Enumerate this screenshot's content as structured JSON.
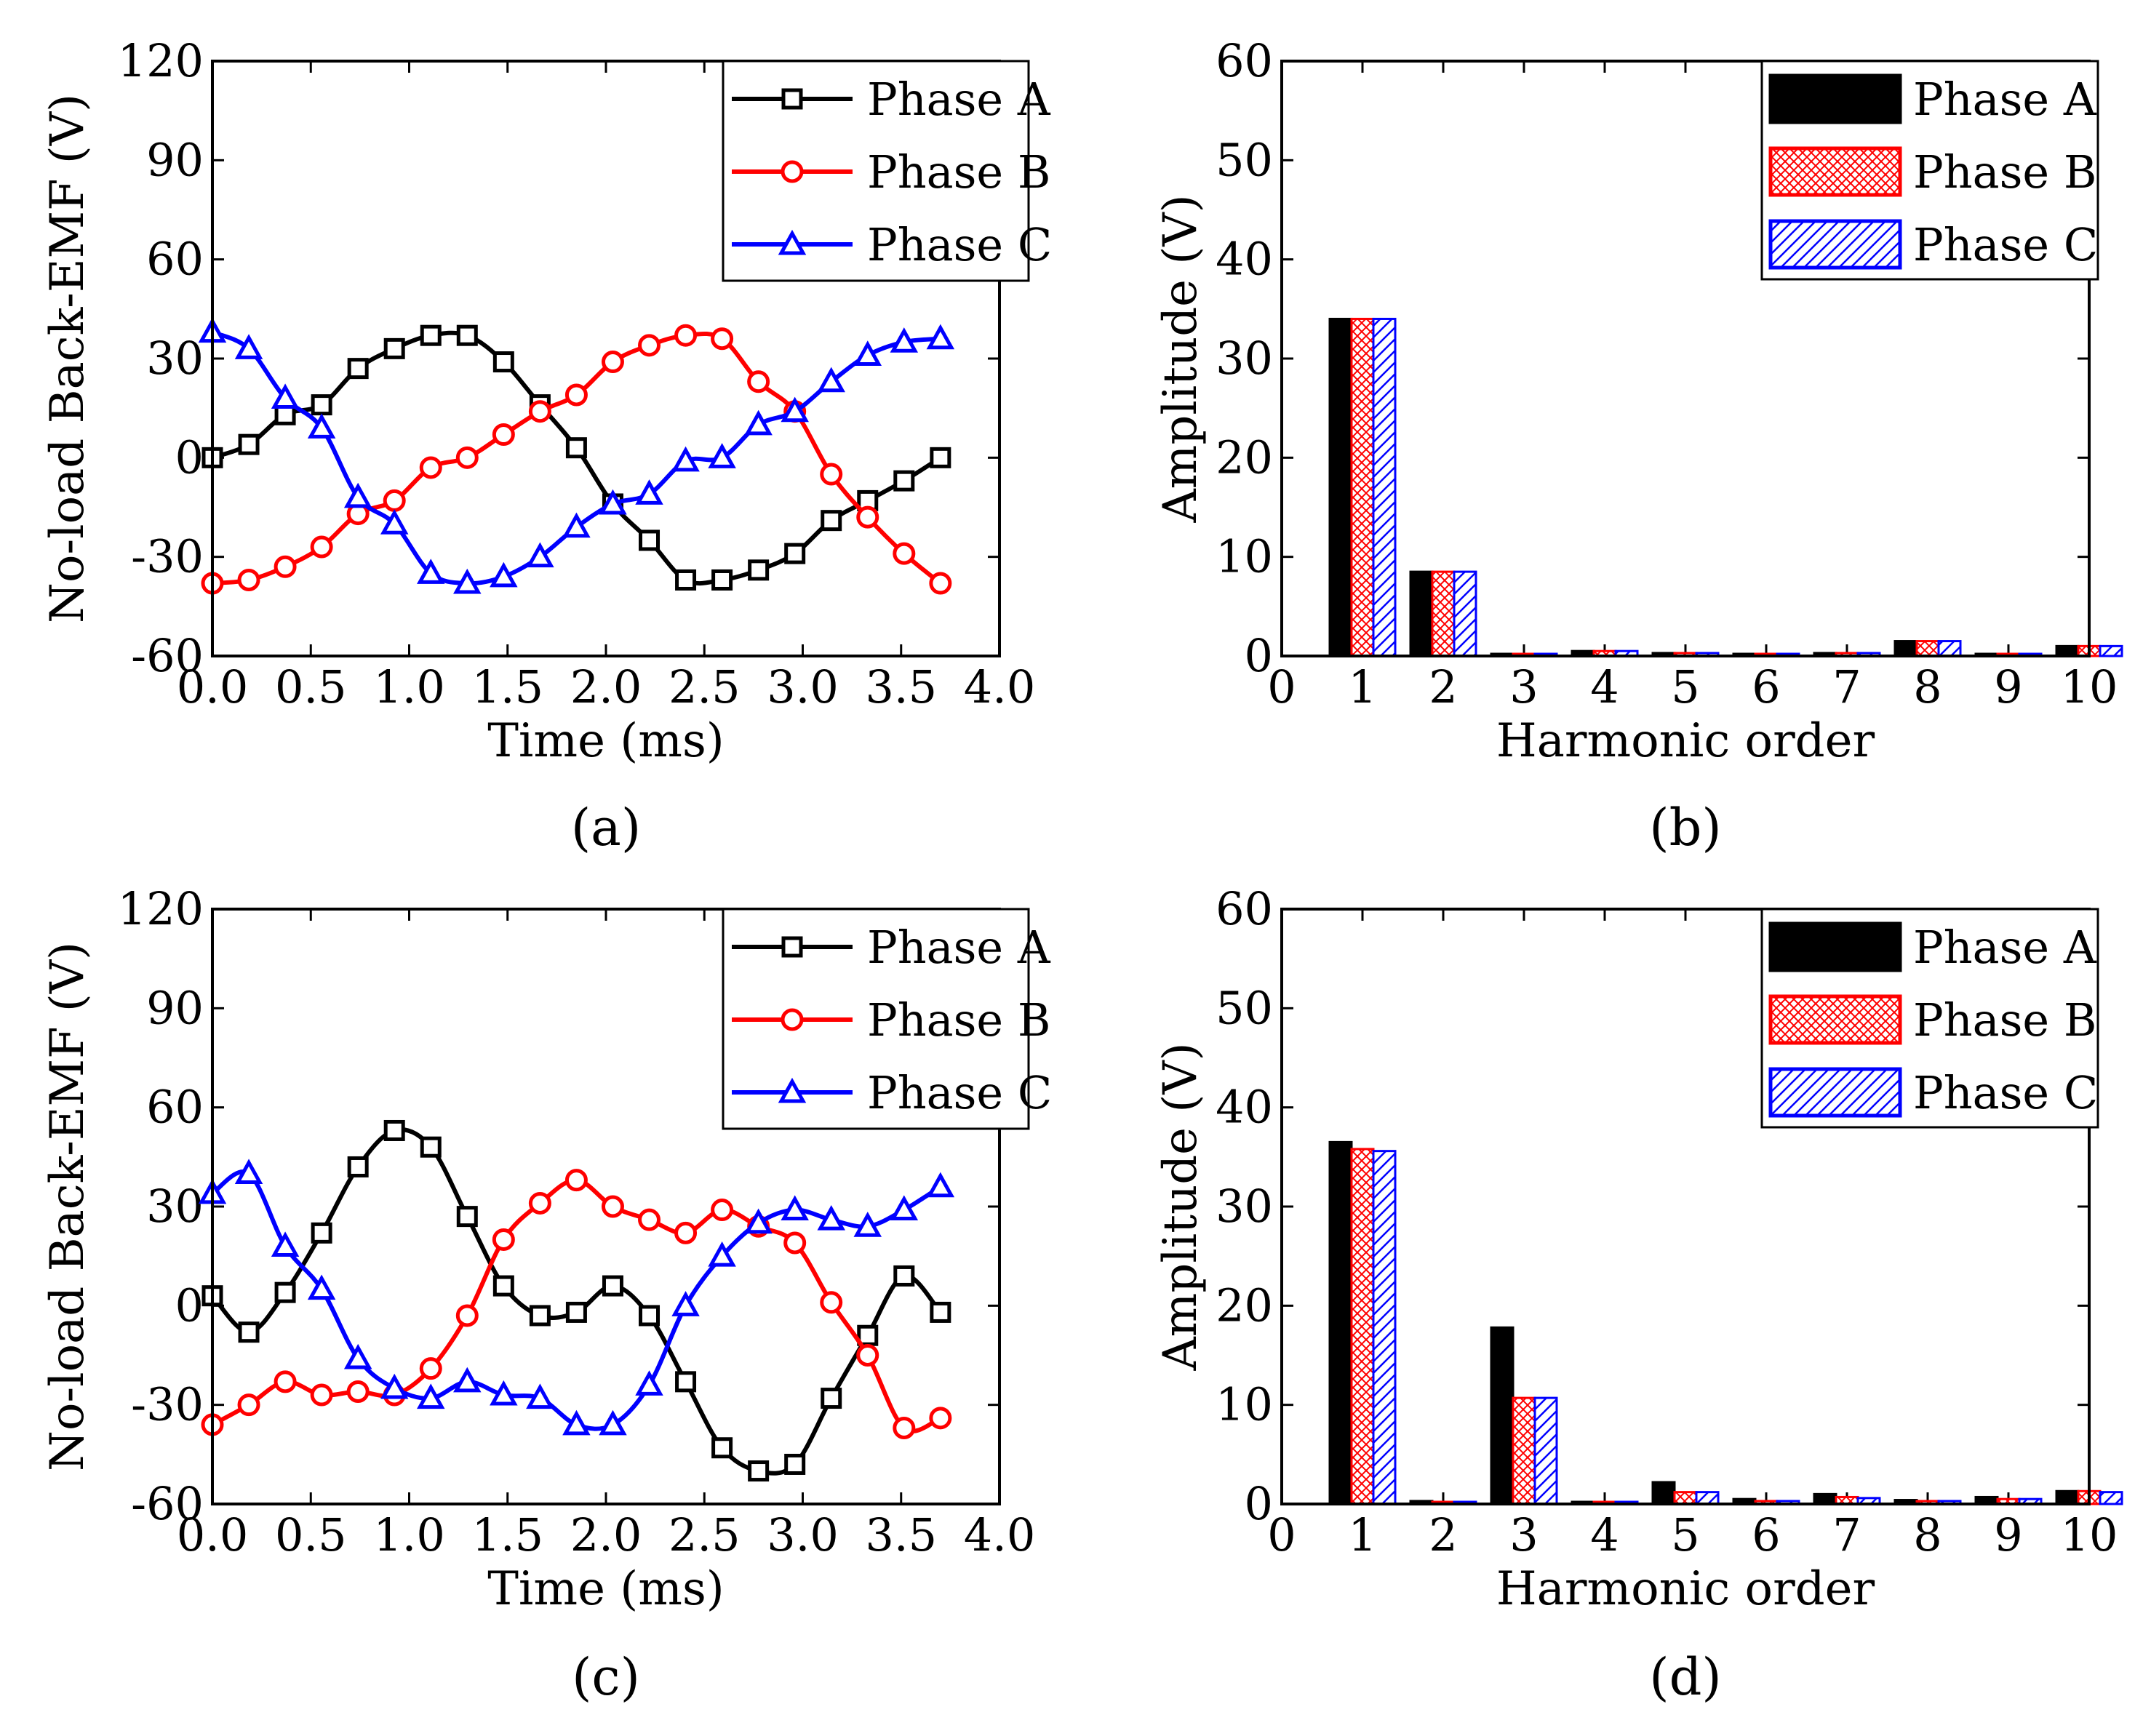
{
  "chart_data": [
    {
      "panel": "(a)",
      "type": "line",
      "xlabel": "Time (ms)",
      "ylabel": "No-load Back-EMF (V)",
      "xlim": [
        0.0,
        4.0
      ],
      "ylim": [
        -60,
        120
      ],
      "xticks": [
        "0.0",
        "0.5",
        "1.0",
        "1.5",
        "2.0",
        "2.5",
        "3.0",
        "3.5",
        "4.0"
      ],
      "yticks": [
        "-60",
        "-30",
        "0",
        "30",
        "60",
        "90",
        "120"
      ],
      "legend_position": "top-right",
      "x": [
        0,
        0.185,
        0.37,
        0.555,
        0.74,
        0.925,
        1.11,
        1.295,
        1.48,
        1.665,
        1.85,
        2.035,
        2.22,
        2.405,
        2.59,
        2.775,
        2.96,
        3.145,
        3.33,
        3.515,
        3.7
      ],
      "series": [
        {
          "name": "Phase A",
          "color": "#000000",
          "marker": "square",
          "values": [
            0,
            4,
            13,
            16,
            27,
            33,
            37,
            37,
            29,
            16,
            3,
            -14,
            -25,
            -37,
            -37,
            -34,
            -29,
            -19,
            -13,
            -7,
            0
          ]
        },
        {
          "name": "Phase B",
          "color": "#ff0000",
          "marker": "circle",
          "values": [
            -38,
            -37,
            -33,
            -27,
            -17,
            -13,
            -3,
            0,
            7,
            14,
            19,
            29,
            34,
            37,
            36,
            23,
            14,
            -5,
            -18,
            -29,
            -38
          ]
        },
        {
          "name": "Phase C",
          "color": "#0000ff",
          "marker": "triangle",
          "values": [
            38,
            33,
            18,
            9,
            -12,
            -20,
            -35,
            -38,
            -36,
            -30,
            -21,
            -14,
            -11,
            -1,
            0,
            10,
            14,
            23,
            31,
            35,
            36
          ]
        }
      ]
    },
    {
      "panel": "(b)",
      "type": "bar",
      "xlabel": "Harmonic order",
      "ylabel": "Amplitude (V)",
      "xlim": [
        0,
        10
      ],
      "ylim": [
        0,
        60
      ],
      "xticks": [
        "0",
        "1",
        "2",
        "3",
        "4",
        "5",
        "6",
        "7",
        "8",
        "9",
        "10"
      ],
      "yticks": [
        "0",
        "10",
        "20",
        "30",
        "40",
        "50",
        "60"
      ],
      "legend_position": "top-right",
      "categories": [
        "1",
        "2",
        "3",
        "4",
        "5",
        "6",
        "7",
        "8",
        "9",
        "10"
      ],
      "series": [
        {
          "name": "Phase A",
          "color": "#000000",
          "fill": "solid",
          "values": [
            34,
            8.5,
            0.2,
            0.5,
            0.3,
            0.2,
            0.3,
            1.5,
            0.2,
            1.0
          ]
        },
        {
          "name": "Phase B",
          "color": "#ff0000",
          "fill": "crosshatch",
          "values": [
            34,
            8.5,
            0.2,
            0.5,
            0.3,
            0.2,
            0.3,
            1.5,
            0.2,
            1.0
          ]
        },
        {
          "name": "Phase C",
          "color": "#0000ff",
          "fill": "diagonal",
          "values": [
            34,
            8.5,
            0.2,
            0.5,
            0.3,
            0.2,
            0.3,
            1.5,
            0.2,
            1.0
          ]
        }
      ]
    },
    {
      "panel": "(c)",
      "type": "line",
      "xlabel": "Time (ms)",
      "ylabel": "No-load Back-EMF (V)",
      "xlim": [
        0.0,
        4.0
      ],
      "ylim": [
        -60,
        120
      ],
      "xticks": [
        "0.0",
        "0.5",
        "1.0",
        "1.5",
        "2.0",
        "2.5",
        "3.0",
        "3.5",
        "4.0"
      ],
      "yticks": [
        "-60",
        "-30",
        "0",
        "30",
        "60",
        "90",
        "120"
      ],
      "legend_position": "top-right",
      "x": [
        0,
        0.185,
        0.37,
        0.555,
        0.74,
        0.925,
        1.11,
        1.295,
        1.48,
        1.665,
        1.85,
        2.035,
        2.22,
        2.405,
        2.59,
        2.775,
        2.96,
        3.145,
        3.33,
        3.515,
        3.7
      ],
      "series": [
        {
          "name": "Phase A",
          "color": "#000000",
          "marker": "square",
          "values": [
            3,
            -8,
            4,
            22,
            42,
            53,
            48,
            27,
            6,
            -3,
            -2,
            6,
            -3,
            -23,
            -43,
            -50,
            -48,
            -28,
            -9,
            9,
            -2
          ]
        },
        {
          "name": "Phase B",
          "color": "#ff0000",
          "marker": "circle",
          "values": [
            -36,
            -30,
            -23,
            -27,
            -26,
            -27,
            -19,
            -3,
            20,
            31,
            38,
            30,
            26,
            22,
            29,
            24,
            19,
            1,
            -15,
            -37,
            -34
          ]
        },
        {
          "name": "Phase C",
          "color": "#0000ff",
          "marker": "triangle",
          "values": [
            34,
            40,
            18,
            5,
            -16,
            -25,
            -28,
            -23,
            -27,
            -28,
            -36,
            -36,
            -24,
            0,
            15,
            25,
            29,
            26,
            24,
            29,
            36
          ]
        }
      ]
    },
    {
      "panel": "(d)",
      "type": "bar",
      "xlabel": "Harmonic order",
      "ylabel": "Amplitude (V)",
      "xlim": [
        0,
        10
      ],
      "ylim": [
        0,
        60
      ],
      "xticks": [
        "0",
        "1",
        "2",
        "3",
        "4",
        "5",
        "6",
        "7",
        "8",
        "9",
        "10"
      ],
      "yticks": [
        "0",
        "10",
        "20",
        "30",
        "40",
        "50",
        "60"
      ],
      "legend_position": "top-right",
      "categories": [
        "1",
        "2",
        "3",
        "4",
        "5",
        "6",
        "7",
        "8",
        "9",
        "10"
      ],
      "series": [
        {
          "name": "Phase A",
          "color": "#000000",
          "fill": "solid",
          "values": [
            36.5,
            0.3,
            17.8,
            0.2,
            2.2,
            0.5,
            1.0,
            0.4,
            0.7,
            1.3
          ]
        },
        {
          "name": "Phase B",
          "color": "#ff0000",
          "fill": "crosshatch",
          "values": [
            35.8,
            0.2,
            10.7,
            0.2,
            1.2,
            0.3,
            0.7,
            0.3,
            0.5,
            1.3
          ]
        },
        {
          "name": "Phase C",
          "color": "#0000ff",
          "fill": "diagonal",
          "values": [
            35.6,
            0.2,
            10.7,
            0.2,
            1.2,
            0.3,
            0.6,
            0.3,
            0.5,
            1.2
          ]
        }
      ]
    }
  ]
}
